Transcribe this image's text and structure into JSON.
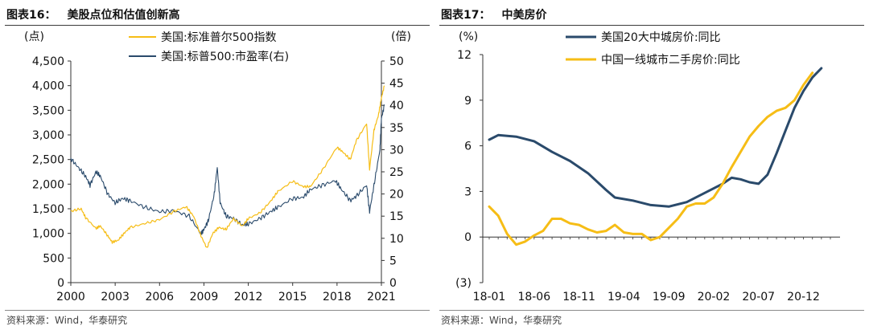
{
  "figures": [
    {
      "title_number": "图表16：",
      "title_text": "美股点位和估值创新高",
      "source": "资料来源：Wind，华泰研究"
    },
    {
      "title_number": "图表17：",
      "title_text": "中美房价",
      "source": "资料来源：Wind，华泰研究"
    }
  ],
  "chart_data": [
    {
      "type": "line",
      "left_unit": "(点)",
      "right_unit": "(倍)",
      "x_ticks": [
        "2000",
        "2003",
        "2006",
        "2009",
        "2012",
        "2015",
        "2018",
        "2021"
      ],
      "x_range": [
        2000,
        2021
      ],
      "y_left": {
        "ylim": [
          0,
          4500
        ],
        "ticks": [
          0,
          500,
          1000,
          1500,
          2000,
          2500,
          3000,
          3500,
          4000,
          4500
        ],
        "tick_labels": [
          "0",
          "500",
          "1,000",
          "1,500",
          "2,000",
          "2,500",
          "3,000",
          "3,500",
          "4,000",
          "4,500"
        ]
      },
      "y_right": {
        "ylim": [
          0,
          50
        ],
        "ticks": [
          0,
          5,
          10,
          15,
          20,
          25,
          30,
          35,
          40,
          45,
          50
        ],
        "tick_labels": [
          "0",
          "5",
          "10",
          "15",
          "20",
          "25",
          "30",
          "35",
          "40",
          "45",
          "50"
        ]
      },
      "legend_position": "top-center",
      "series": [
        {
          "name": "美国:标准普尔500指数",
          "axis": "left",
          "color": "#f6bd16",
          "points": [
            [
              2000.0,
              1450
            ],
            [
              2000.7,
              1500
            ],
            [
              2001.0,
              1320
            ],
            [
              2001.7,
              1100
            ],
            [
              2002.0,
              1150
            ],
            [
              2002.5,
              950
            ],
            [
              2002.8,
              820
            ],
            [
              2003.2,
              860
            ],
            [
              2003.6,
              1000
            ],
            [
              2004.0,
              1120
            ],
            [
              2005.0,
              1200
            ],
            [
              2006.0,
              1280
            ],
            [
              2007.0,
              1450
            ],
            [
              2007.8,
              1540
            ],
            [
              2008.3,
              1350
            ],
            [
              2008.8,
              950
            ],
            [
              2009.2,
              700
            ],
            [
              2009.6,
              1000
            ],
            [
              2010.0,
              1120
            ],
            [
              2010.5,
              1080
            ],
            [
              2011.0,
              1300
            ],
            [
              2011.6,
              1150
            ],
            [
              2012.0,
              1300
            ],
            [
              2012.8,
              1420
            ],
            [
              2013.5,
              1650
            ],
            [
              2014.0,
              1850
            ],
            [
              2015.0,
              2060
            ],
            [
              2015.7,
              1950
            ],
            [
              2016.2,
              1950
            ],
            [
              2017.0,
              2280
            ],
            [
              2018.0,
              2750
            ],
            [
              2018.4,
              2650
            ],
            [
              2018.9,
              2500
            ],
            [
              2019.3,
              2880
            ],
            [
              2020.0,
              3230
            ],
            [
              2020.2,
              2300
            ],
            [
              2020.5,
              3100
            ],
            [
              2020.8,
              3400
            ],
            [
              2021.0,
              3750
            ],
            [
              2021.2,
              4000
            ]
          ]
        },
        {
          "name": "美国:标普500:市盈率(右)",
          "axis": "right",
          "color": "#2a4a6b",
          "points": [
            [
              2000.0,
              28
            ],
            [
              2000.5,
              26
            ],
            [
              2001.0,
              24
            ],
            [
              2001.3,
              22
            ],
            [
              2001.7,
              25
            ],
            [
              2002.0,
              24
            ],
            [
              2002.5,
              20
            ],
            [
              2003.0,
              18
            ],
            [
              2003.5,
              19
            ],
            [
              2004.0,
              18.5
            ],
            [
              2005.0,
              17
            ],
            [
              2006.0,
              16
            ],
            [
              2007.0,
              16.2
            ],
            [
              2008.0,
              15
            ],
            [
              2008.8,
              11
            ],
            [
              2009.0,
              12
            ],
            [
              2009.3,
              14
            ],
            [
              2009.7,
              20
            ],
            [
              2009.9,
              26
            ],
            [
              2010.1,
              18
            ],
            [
              2010.5,
              15
            ],
            [
              2011.0,
              14.5
            ],
            [
              2011.6,
              13
            ],
            [
              2012.0,
              13.2
            ],
            [
              2012.8,
              14.5
            ],
            [
              2013.5,
              16
            ],
            [
              2014.0,
              17
            ],
            [
              2015.0,
              19
            ],
            [
              2015.7,
              19.2
            ],
            [
              2016.2,
              21
            ],
            [
              2017.0,
              22
            ],
            [
              2017.9,
              23
            ],
            [
              2018.3,
              21
            ],
            [
              2018.9,
              18.5
            ],
            [
              2019.3,
              19.5
            ],
            [
              2020.0,
              22
            ],
            [
              2020.2,
              16
            ],
            [
              2020.5,
              22
            ],
            [
              2020.9,
              30
            ],
            [
              2021.0,
              37
            ],
            [
              2021.2,
              40
            ]
          ]
        }
      ]
    },
    {
      "type": "line",
      "unit": "(%)",
      "x_labels": [
        "18-01",
        "18-06",
        "18-11",
        "19-04",
        "19-09",
        "20-02",
        "20-07",
        "20-12"
      ],
      "x_range": [
        0,
        38
      ],
      "ylim": [
        -3,
        12
      ],
      "y_ticks": [
        -3,
        0,
        3,
        6,
        9,
        12
      ],
      "y_tick_labels": [
        "(3)",
        "0",
        "3",
        "6",
        "9",
        "12"
      ],
      "legend_position": "top-left",
      "series": [
        {
          "name": "美国20大中城房价:同比",
          "color": "#2a4a6b",
          "points": [
            [
              0,
              6.4
            ],
            [
              1,
              6.7
            ],
            [
              3,
              6.6
            ],
            [
              5,
              6.3
            ],
            [
              7,
              5.6
            ],
            [
              9,
              5.0
            ],
            [
              11,
              4.2
            ],
            [
              13,
              3.1
            ],
            [
              14,
              2.6
            ],
            [
              16,
              2.4
            ],
            [
              18,
              2.1
            ],
            [
              20,
              2.0
            ],
            [
              22,
              2.3
            ],
            [
              24,
              2.9
            ],
            [
              26,
              3.5
            ],
            [
              27,
              3.9
            ],
            [
              28,
              3.8
            ],
            [
              29,
              3.6
            ],
            [
              30,
              3.5
            ],
            [
              31,
              4.1
            ],
            [
              32,
              5.5
            ],
            [
              33,
              7.0
            ],
            [
              34,
              8.5
            ],
            [
              35,
              9.6
            ],
            [
              36,
              10.5
            ],
            [
              37,
              11.1
            ]
          ]
        },
        {
          "name": "中国一线城市二手房价:同比",
          "color": "#f6bd16",
          "points": [
            [
              0,
              2.0
            ],
            [
              1,
              1.4
            ],
            [
              2,
              0.2
            ],
            [
              3,
              -0.5
            ],
            [
              4,
              -0.3
            ],
            [
              5,
              0.1
            ],
            [
              6,
              0.4
            ],
            [
              7,
              1.2
            ],
            [
              8,
              1.2
            ],
            [
              9,
              0.9
            ],
            [
              10,
              0.8
            ],
            [
              11,
              0.5
            ],
            [
              12,
              0.3
            ],
            [
              13,
              0.4
            ],
            [
              14,
              0.8
            ],
            [
              15,
              0.3
            ],
            [
              16,
              0.2
            ],
            [
              17,
              0.2
            ],
            [
              18,
              -0.2
            ],
            [
              19,
              0.0
            ],
            [
              20,
              0.6
            ],
            [
              21,
              1.2
            ],
            [
              22,
              2.0
            ],
            [
              23,
              2.2
            ],
            [
              24,
              2.2
            ],
            [
              25,
              2.6
            ],
            [
              26,
              3.5
            ],
            [
              27,
              4.6
            ],
            [
              28,
              5.6
            ],
            [
              29,
              6.6
            ],
            [
              30,
              7.3
            ],
            [
              31,
              7.9
            ],
            [
              32,
              8.3
            ],
            [
              33,
              8.5
            ],
            [
              34,
              9.0
            ],
            [
              35,
              10.0
            ],
            [
              36,
              10.8
            ]
          ]
        }
      ]
    }
  ]
}
